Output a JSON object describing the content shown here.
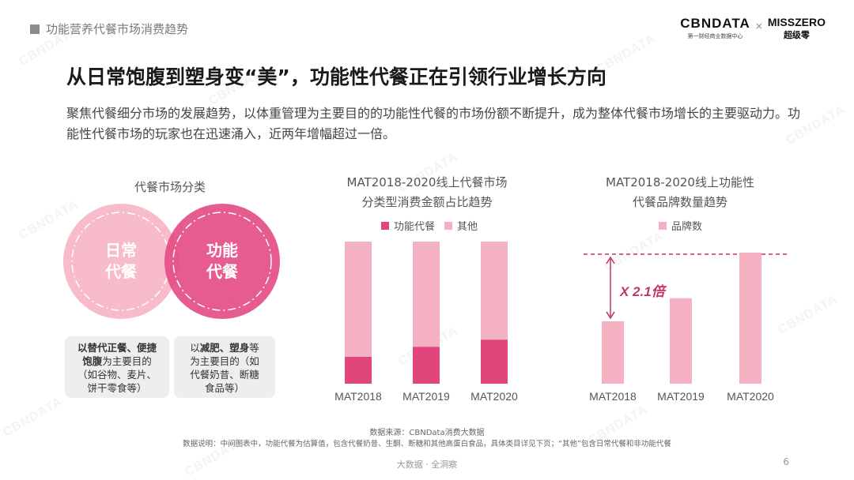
{
  "header": {
    "section_tag": "功能营养代餐市场消费趋势",
    "logo1_main": "CBNDATA",
    "logo1_sub": "第一财经商业数据中心",
    "logo_times": "×",
    "logo2_main": "MISSZERO",
    "logo2_sub": "超级零"
  },
  "headline": "从日常饱腹到塑身变“美”，功能性代餐正在引领行业增长方向",
  "description": "聚焦代餐细分市场的发展趋势，以体重管理为主要目的的功能性代餐的市场份额不断提升，成为整体代餐市场增长的主要驱动力。功能性代餐市场的玩家也在迅速涌入，近两年增幅超过一倍。",
  "classification": {
    "title": "代餐市场分类",
    "circle_daily": {
      "line1": "日常",
      "line2": "代餐"
    },
    "circle_functional": {
      "line1": "功能",
      "line2": "代餐"
    },
    "box_daily": {
      "bold1": "以替代正餐、便捷",
      "bold2": "饱腹",
      "rest1": "为主要目的",
      "rest2": "（如谷物、麦片、",
      "rest3": "饼干零食等）"
    },
    "box_functional": {
      "pre": "以",
      "bold": "减肥、塑身",
      "post": "等",
      "rest1": "为主要目的（如",
      "rest2": "代餐奶昔、断糖",
      "rest3": "食品等）"
    }
  },
  "chart_share": {
    "title_line1": "MAT2018-2020线上代餐市场",
    "title_line2": "分类型消费金额占比趋势",
    "legend": [
      "功能代餐",
      "其他"
    ]
  },
  "chart_brand": {
    "title_line1": "MAT2018-2020线上功能性",
    "title_line2": "代餐品牌数量趋势",
    "legend": [
      "品牌数"
    ],
    "annotation": "X 2.1倍"
  },
  "chart_data": [
    {
      "type": "bar",
      "stacked": true,
      "normalized": true,
      "categories": [
        "MAT2018",
        "MAT2019",
        "MAT2020"
      ],
      "series": [
        {
          "name": "功能代餐",
          "values": [
            0.19,
            0.26,
            0.31
          ]
        },
        {
          "name": "其他",
          "values": [
            0.81,
            0.74,
            0.69
          ]
        }
      ],
      "ylim": [
        0,
        1
      ],
      "grid": false,
      "legend_position": "top"
    },
    {
      "type": "bar",
      "categories": [
        "MAT2018",
        "MAT2019",
        "MAT2020"
      ],
      "series": [
        {
          "name": "品牌数",
          "values": [
            1.0,
            1.37,
            2.1
          ]
        }
      ],
      "ylim": [
        0,
        2.1
      ],
      "grid": false,
      "legend_position": "top"
    }
  ],
  "footer": {
    "source": "数据来源：CBNData消费大数据",
    "note": "数据说明：中间图表中，功能代餐为估算值，包含代餐奶昔、生酮、断糖和其他高蛋白食品，具体类目详见下页；“其他”包含日常代餐和非功能代餐",
    "slogan": "大数据 · 全洞察",
    "page": "6"
  },
  "colors": {
    "functional": "#e0457b",
    "other": "#f4b1c1",
    "circle_left": "#f7b8c7",
    "circle_right": "#e44f86",
    "dashed": "#c3326a"
  }
}
